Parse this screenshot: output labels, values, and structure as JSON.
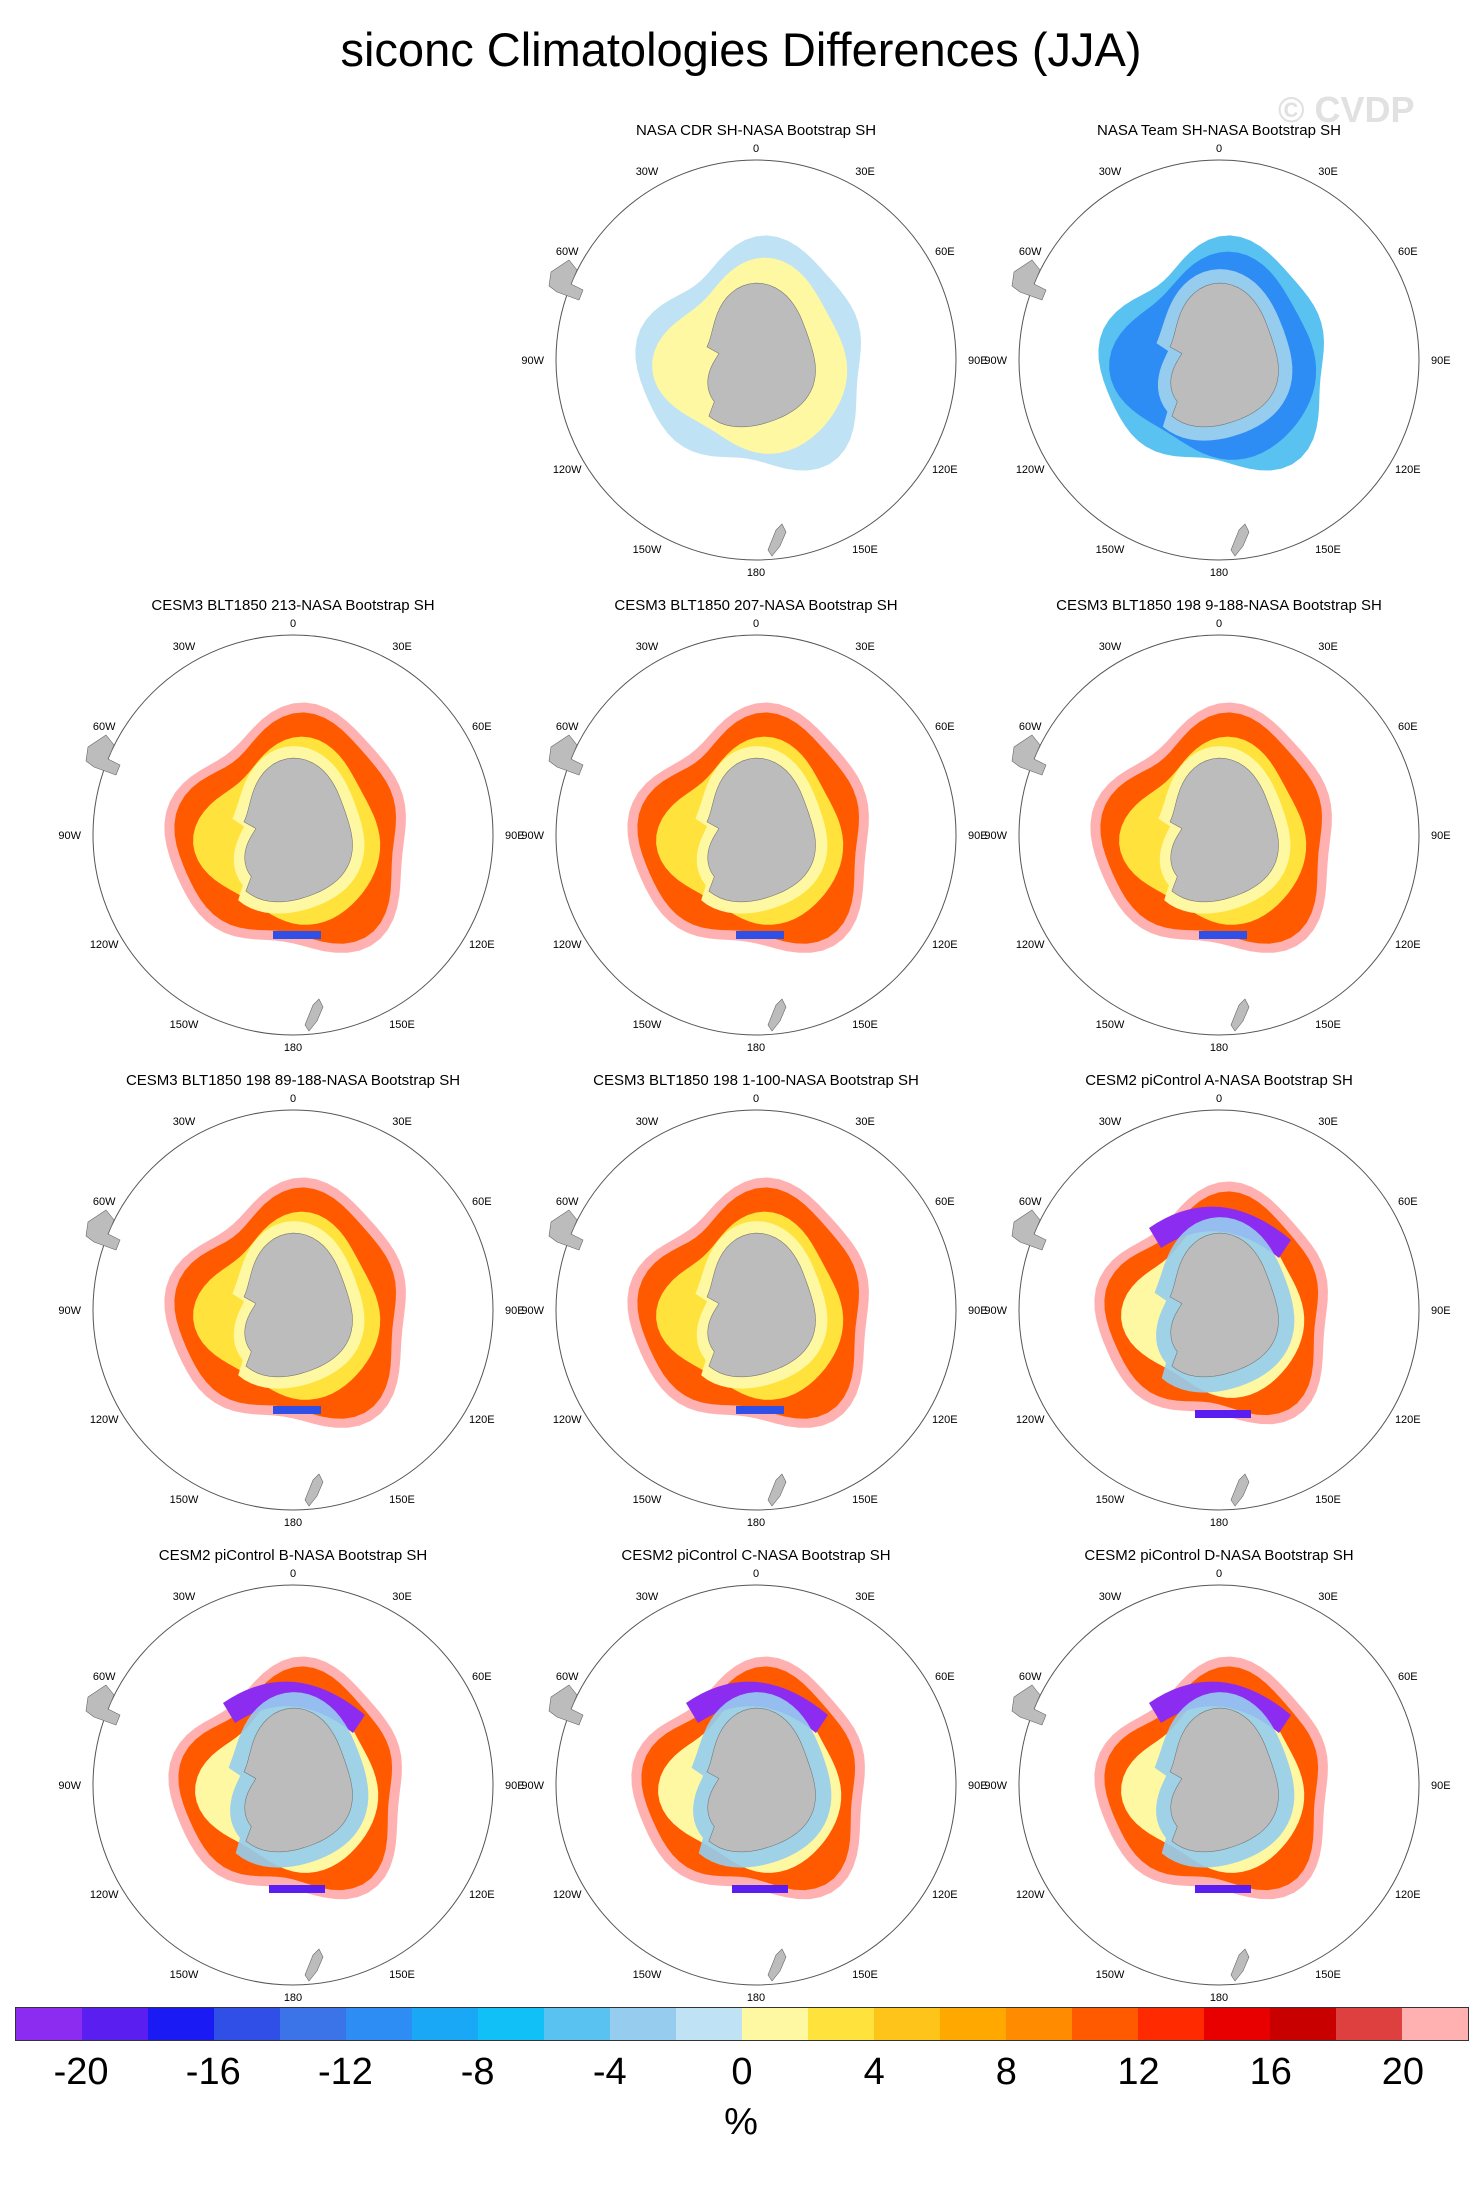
{
  "title": "siconc Climatologies Differences (JJA)",
  "watermark": "© CVDP",
  "lon_labels": [
    "0",
    "30E",
    "60E",
    "90E",
    "120E",
    "150E",
    "180",
    "150W",
    "120W",
    "90W",
    "60W",
    "30W"
  ],
  "panels": [
    {
      "title": "NASA CDR SH-NASA Bootstrap SH",
      "pattern": "cdr"
    },
    {
      "title": "NASA Team SH-NASA Bootstrap SH",
      "pattern": "team"
    },
    {
      "title": "CESM3 BLT1850 213-NASA Bootstrap SH",
      "pattern": "cesm3"
    },
    {
      "title": "CESM3 BLT1850 207-NASA Bootstrap SH",
      "pattern": "cesm3"
    },
    {
      "title": "CESM3 BLT1850 198 9-188-NASA Bootstrap SH",
      "pattern": "cesm3"
    },
    {
      "title": "CESM3 BLT1850 198 89-188-NASA Bootstrap SH",
      "pattern": "cesm3"
    },
    {
      "title": "CESM3 BLT1850 198 1-100-NASA Bootstrap SH",
      "pattern": "cesm3"
    },
    {
      "title": "CESM2 piControl A-NASA Bootstrap SH",
      "pattern": "cesm2"
    },
    {
      "title": "CESM2 piControl B-NASA Bootstrap SH",
      "pattern": "cesm2"
    },
    {
      "title": "CESM2 piControl C-NASA Bootstrap SH",
      "pattern": "cesm2"
    },
    {
      "title": "CESM2 piControl D-NASA Bootstrap SH",
      "pattern": "cesm2"
    }
  ],
  "colorbar": {
    "colors": [
      "#8b2cf0",
      "#5b1ef0",
      "#1a1af5",
      "#2f4fe6",
      "#3a74e8",
      "#2e8cf5",
      "#19a8f5",
      "#10c0f7",
      "#5ac2f0",
      "#96cdee",
      "#bfe2f5",
      "#fff8a3",
      "#ffe23c",
      "#ffc41a",
      "#ffa800",
      "#ff8c00",
      "#ff5a00",
      "#ff2a00",
      "#e80000",
      "#c80000",
      "#de4040",
      "#ffb1b1"
    ],
    "ticks": [
      "-20",
      "-16",
      "-12",
      "-8",
      "-4",
      "0",
      "4",
      "8",
      "12",
      "16",
      "20"
    ],
    "unit": "%"
  }
}
